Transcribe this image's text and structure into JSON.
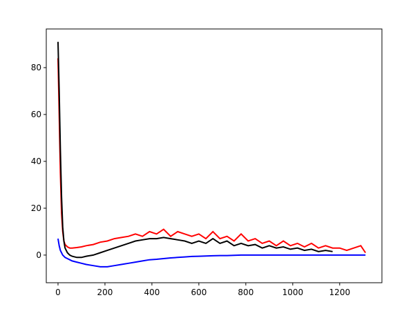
{
  "chart_data": {
    "type": "line",
    "x": [
      0,
      5,
      10,
      15,
      20,
      25,
      30,
      40,
      50,
      60,
      80,
      100,
      120,
      150,
      180,
      210,
      240,
      270,
      300,
      330,
      360,
      390,
      420,
      450,
      480,
      510,
      540,
      570,
      600,
      630,
      660,
      690,
      720,
      750,
      780,
      810,
      840,
      870,
      900,
      930,
      960,
      990,
      1020,
      1050,
      1080,
      1110,
      1140,
      1170,
      1200,
      1230,
      1260,
      1290,
      1310
    ],
    "series": [
      {
        "color": "#ff0000",
        "values": [
          84,
          60,
          35,
          18,
          10,
          6,
          4.5,
          3.5,
          3,
          3,
          3.2,
          3.5,
          4,
          4.5,
          5.5,
          6,
          7,
          7.5,
          8,
          9,
          8,
          10,
          9,
          11,
          8,
          10,
          9,
          8,
          9,
          7,
          10,
          7,
          8,
          6,
          9,
          6,
          7,
          5,
          6,
          4,
          6,
          4,
          5,
          3.5,
          5,
          3,
          4,
          3,
          3,
          2,
          3,
          4,
          1
        ]
      },
      {
        "color": "#000000",
        "values": [
          91,
          70,
          45,
          25,
          12,
          6,
          3,
          1,
          0,
          -0.5,
          -1,
          -1,
          -0.5,
          0,
          1,
          2,
          3,
          4,
          5,
          6,
          6.5,
          7,
          7,
          7.5,
          7,
          6.5,
          6,
          5,
          6,
          5,
          7,
          5,
          6,
          4,
          5,
          4,
          4.5,
          3,
          4,
          3,
          3.5,
          2.5,
          3,
          2,
          2.5,
          1.5,
          2,
          1.5,
          null,
          null,
          null,
          null,
          null
        ]
      },
      {
        "color": "#0000ff",
        "values": [
          7,
          4,
          2,
          1,
          0,
          -0.5,
          -1,
          -1.5,
          -2,
          -2.5,
          -3,
          -3.5,
          -4,
          -4.5,
          -5,
          -5,
          -4.5,
          -4,
          -3.5,
          -3,
          -2.5,
          -2,
          -1.8,
          -1.5,
          -1.2,
          -1,
          -0.8,
          -0.6,
          -0.5,
          -0.4,
          -0.3,
          -0.2,
          -0.2,
          -0.1,
          0,
          0,
          0,
          0,
          0,
          0,
          0,
          0,
          0,
          0,
          0,
          0,
          0,
          0,
          0,
          0,
          0,
          0,
          0
        ]
      }
    ],
    "xlim": [
      -50,
      1380
    ],
    "ylim": [
      -11.8,
      96.5
    ],
    "xticks": [
      0,
      200,
      400,
      600,
      800,
      1000,
      1200
    ],
    "yticks": [
      0,
      20,
      40,
      60,
      80
    ]
  }
}
